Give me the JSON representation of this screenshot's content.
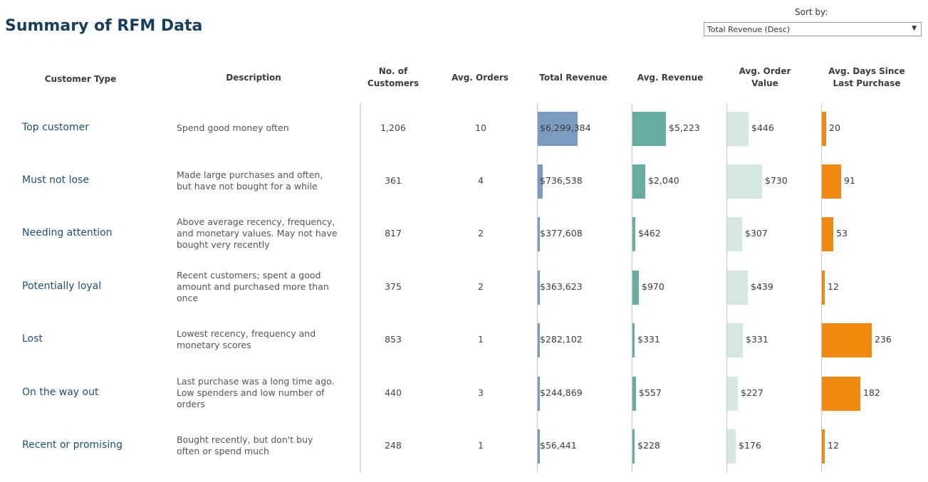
{
  "header": {
    "title": "Summary of RFM Data",
    "sort_label": "Sort by:",
    "sort_value": "Total Revenue (Desc)"
  },
  "table": {
    "columns": {
      "customer_type": "Customer Type",
      "description": "Description",
      "customers_line1": "No. of",
      "customers_line2": "Customers",
      "avg_orders": "Avg. Orders",
      "total_revenue": "Total Revenue",
      "avg_revenue": "Avg. Revenue",
      "aov_line1": "Avg. Order",
      "aov_line2": "Value",
      "days_line1": "Avg. Days Since",
      "days_line2": "Last Purchase"
    },
    "rows": [
      {
        "type": "Top customer",
        "desc": [
          "Spend good money often"
        ],
        "customers": "1,206",
        "orders": "10",
        "total_revenue": "$6,299,384",
        "avg_revenue": "$5,223",
        "aov": "$446",
        "days": "20"
      },
      {
        "type": "Must not lose",
        "desc": [
          "Made large purchases and often,",
          "but have not bought for a while"
        ],
        "customers": "361",
        "orders": "4",
        "total_revenue": "$736,538",
        "avg_revenue": "$2,040",
        "aov": "$730",
        "days": "91"
      },
      {
        "type": "Needing attention",
        "desc": [
          "Above average recency, frequency,",
          "and monetary values. May not have",
          "bought very recently"
        ],
        "customers": "817",
        "orders": "2",
        "total_revenue": "$377,608",
        "avg_revenue": "$462",
        "aov": "$307",
        "days": "53"
      },
      {
        "type": "Potentially loyal",
        "desc": [
          "Recent customers; spent a good",
          "amount and purchased more than",
          "once"
        ],
        "customers": "375",
        "orders": "2",
        "total_revenue": "$363,623",
        "avg_revenue": "$970",
        "aov": "$439",
        "days": "12"
      },
      {
        "type": "Lost",
        "desc": [
          "Lowest recency, frequency and",
          "monetary scores"
        ],
        "customers": "853",
        "orders": "1",
        "total_revenue": "$282,102",
        "avg_revenue": "$331",
        "aov": "$331",
        "days": "236"
      },
      {
        "type": "On the way out",
        "desc": [
          "Last purchase was a long time ago.",
          "Low spenders and low number of",
          "orders"
        ],
        "customers": "440",
        "orders": "3",
        "total_revenue": "$244,869",
        "avg_revenue": "$557",
        "aov": "$227",
        "days": "182"
      },
      {
        "type": "Recent or promising",
        "desc": [
          "Bought recently, but don't buy",
          "often or spend much"
        ],
        "customers": "248",
        "orders": "1",
        "total_revenue": "$56,441",
        "avg_revenue": "$228",
        "aov": "$176",
        "days": "12"
      }
    ]
  },
  "chart_data": {
    "type": "bar",
    "categories": [
      "Top customer",
      "Must not lose",
      "Needing attention",
      "Potentially loyal",
      "Lost",
      "On the way out",
      "Recent or promising"
    ],
    "series": [
      {
        "name": "Total Revenue",
        "values": [
          6299384,
          736538,
          377608,
          363623,
          282102,
          244869,
          56441
        ],
        "color": "#7b9cc0",
        "max": 6299384
      },
      {
        "name": "Avg. Revenue",
        "values": [
          5223,
          2040,
          462,
          970,
          331,
          557,
          228
        ],
        "color": "#66aca3",
        "max": 5223
      },
      {
        "name": "Avg. Order Value",
        "values": [
          446,
          730,
          307,
          439,
          331,
          227,
          176
        ],
        "color": "#d4e7e1",
        "max": 730
      },
      {
        "name": "Avg. Days Since Last Purchase",
        "values": [
          20,
          91,
          53,
          12,
          236,
          182,
          12
        ],
        "color": "#f0890e",
        "max": 236
      }
    ]
  }
}
